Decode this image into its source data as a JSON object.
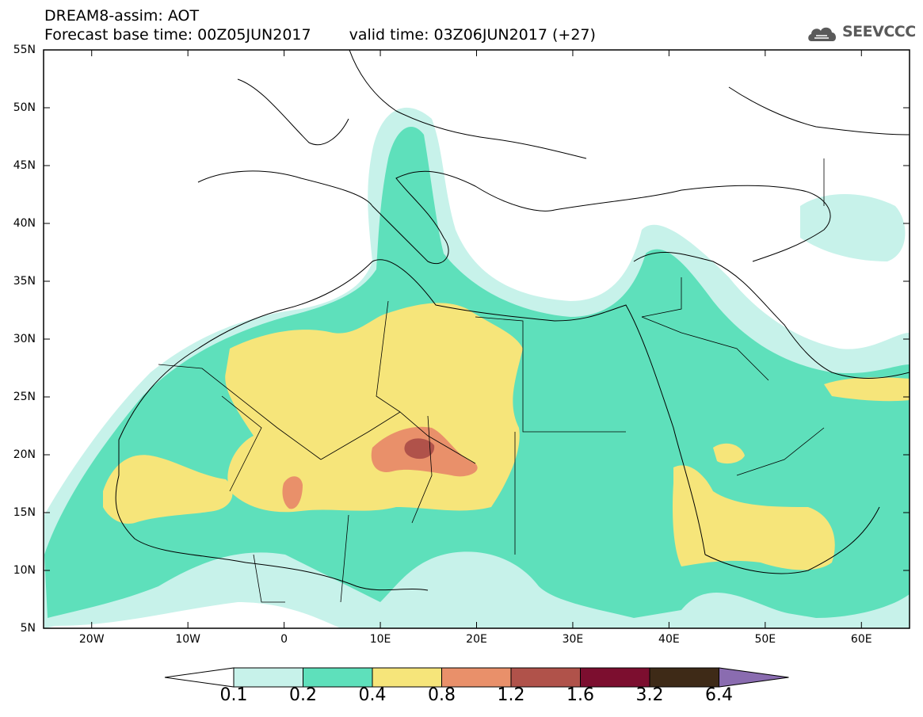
{
  "header": {
    "title_line1": "DREAM8-assim: AOT",
    "base_time": "Forecast base time: 00Z05JUN2017",
    "valid_time": "valid time: 03Z06JUN2017 (+27)"
  },
  "logo": {
    "text": "SEEVCCC",
    "icon": "cloud-logo-icon"
  },
  "map": {
    "lon_range": [
      -25,
      65
    ],
    "lat_range": [
      5,
      55
    ],
    "lat_labels": [
      "55N",
      "50N",
      "45N",
      "40N",
      "35N",
      "30N",
      "25N",
      "20N",
      "15N",
      "10N",
      "5N"
    ],
    "lon_labels": [
      "20W",
      "10W",
      "0",
      "10E",
      "20E",
      "30E",
      "40E",
      "50E",
      "60E"
    ]
  },
  "colorbar": {
    "labels": [
      "0.1",
      "0.2",
      "0.4",
      "0.8",
      "1.2",
      "1.6",
      "3.2",
      "6.4"
    ],
    "colors": [
      "#ffffff",
      "#c7f2ea",
      "#5ee0bb",
      "#f6e57a",
      "#e9906a",
      "#b0524a",
      "#7c0e2f",
      "#3e2a17",
      "#8a6cb0"
    ]
  }
}
